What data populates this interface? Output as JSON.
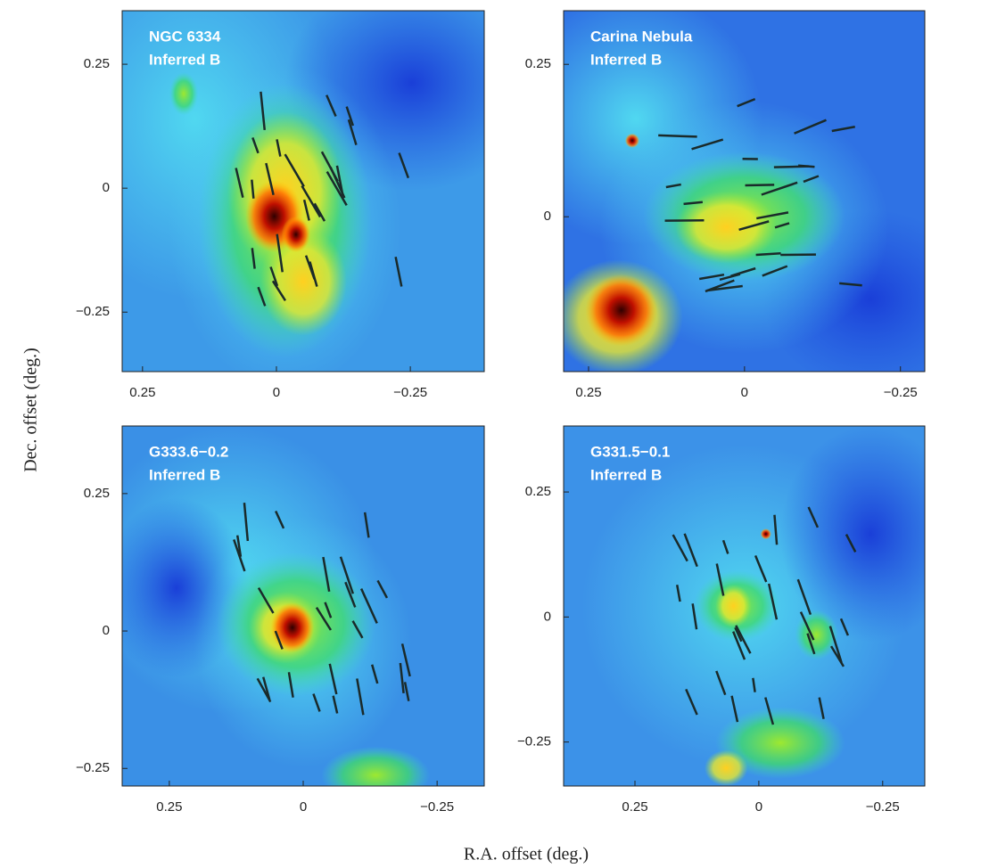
{
  "figure": {
    "ylabel": "Dec. offset (deg.)",
    "xlabel": "R.A. offset (deg.)"
  },
  "chart_data": [
    {
      "type": "image",
      "title": "NGC 6334",
      "subtitle": "Inferred B",
      "xlim": [
        0.288,
        -0.388
      ],
      "ylim": [
        -0.37,
        0.358
      ],
      "xticks": [
        0.25,
        0,
        {
          "value": -0.25,
          "label": "−0.25"
        }
      ],
      "yticks": [
        0.25,
        0,
        {
          "value": -0.25,
          "label": "−0.25"
        }
      ]
    },
    {
      "type": "image",
      "title": "Carina Nebula",
      "subtitle": "Inferred B",
      "xlim": [
        0.29,
        -0.289
      ],
      "ylim": [
        -0.254,
        0.338
      ],
      "xticks": [
        0.25,
        0,
        {
          "value": -0.25,
          "label": "−0.25"
        }
      ],
      "yticks": [
        0.25,
        0
      ]
    },
    {
      "type": "image",
      "title": "G333.6−0.2",
      "subtitle": "Inferred B",
      "xlim": [
        0.338,
        -0.338
      ],
      "ylim": [
        -0.282,
        0.373
      ],
      "xticks": [
        0.25,
        0,
        {
          "value": -0.25,
          "label": "−0.25"
        }
      ],
      "yticks": [
        0.25,
        0,
        {
          "value": -0.25,
          "label": "−0.25"
        }
      ]
    },
    {
      "type": "image",
      "title": "G331.5−0.1",
      "subtitle": "Inferred B",
      "xlim": [
        0.394,
        -0.335
      ],
      "ylim": [
        -0.338,
        0.382
      ],
      "xticks": [
        0.25,
        0,
        {
          "value": -0.25,
          "label": "−0.25"
        }
      ],
      "yticks": [
        0.25,
        0,
        {
          "value": -0.25,
          "label": "−0.25"
        }
      ]
    }
  ]
}
